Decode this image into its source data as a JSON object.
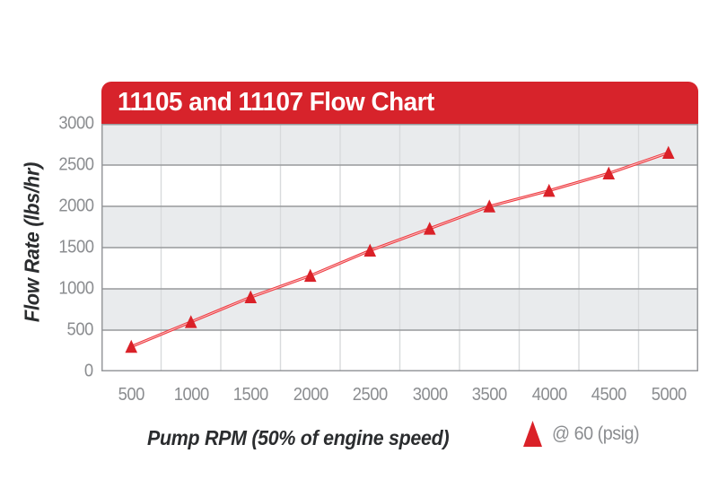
{
  "header": {
    "title": "11105 and 11107 Flow Chart"
  },
  "axes": {
    "y_title": "Flow Rate (lbs/hr)",
    "x_title": "Pump RPM (50% of engine speed)",
    "y_ticks": [
      "3000",
      "2500",
      "2000",
      "1500",
      "1000",
      "500",
      "0"
    ],
    "x_ticks": [
      "500",
      "1000",
      "1500",
      "2000",
      "2500",
      "3000",
      "3500",
      "4000",
      "4500",
      "5000"
    ]
  },
  "legend": {
    "label": "@ 60 (psig)"
  },
  "colors": {
    "header_red": "#d7232b",
    "marker_red": "#da2128",
    "line_red": "#ee3a40",
    "line_core": "rgba(255,255,255,0.65)",
    "band_gray": "#e9ebed",
    "band_white": "#ffffff",
    "vgrid_gray": "#d8dadc",
    "hgrid_gray": "#97999c",
    "border_gray": "#97999c",
    "tick_gray": "#8b8d90",
    "axis_title_dark": "#2b2d2f"
  },
  "chart_data": {
    "type": "line",
    "title": "11105 and 11107 Flow Chart",
    "xlabel": "Pump RPM (50% of engine speed)",
    "ylabel": "Flow Rate (lbs/hr)",
    "x": [
      500,
      1000,
      1500,
      2000,
      2500,
      3000,
      3500,
      4000,
      4500,
      5000
    ],
    "series": [
      {
        "name": "@ 60 (psig)",
        "marker": "triangle",
        "values": [
          300,
          600,
          900,
          1160,
          1465,
          1730,
          2000,
          2190,
          2400,
          2650
        ]
      }
    ],
    "ylim": [
      0,
      3000
    ],
    "yticks": [
      0,
      500,
      1000,
      1500,
      2000,
      2500,
      3000
    ],
    "grid": {
      "horizontal": true,
      "vertical": true,
      "alternating_bands": true
    },
    "legend_position": "bottom-right"
  }
}
